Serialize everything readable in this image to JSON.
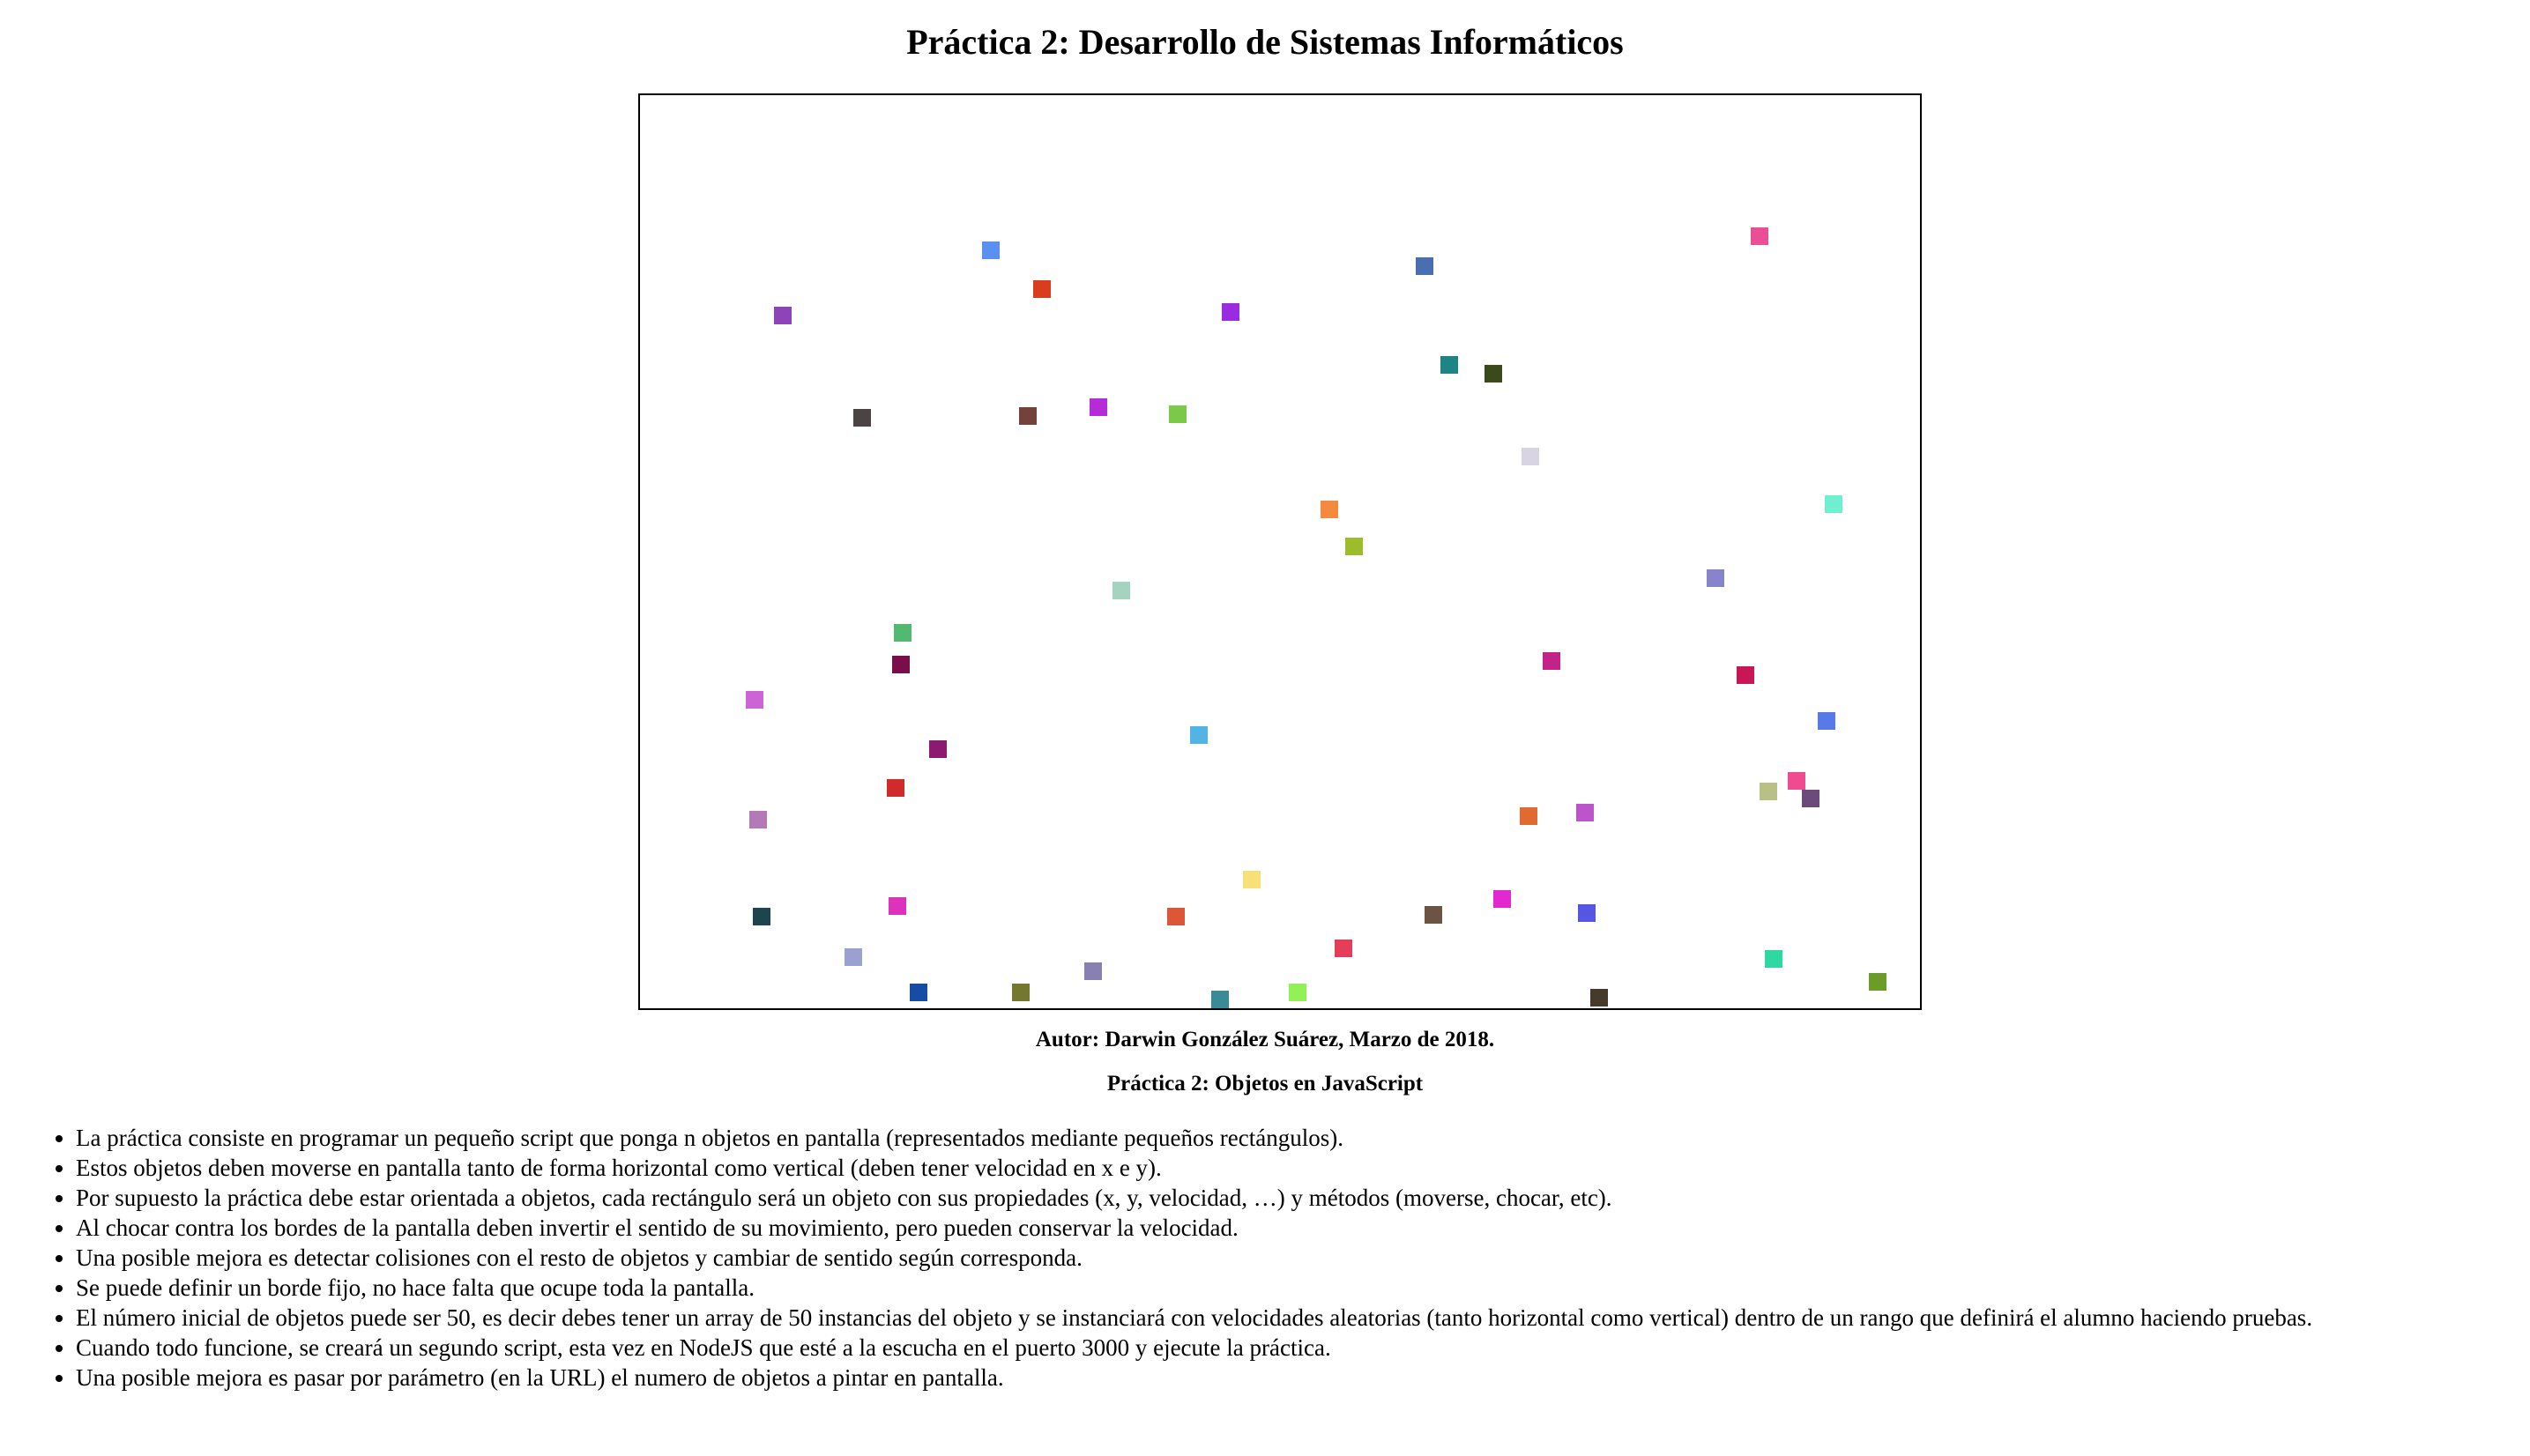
{
  "page": {
    "title": "Práctica 2: Desarrollo de Sistemas Informáticos",
    "author": "Autor: Darwin González Suárez, Marzo de 2018.",
    "subtitle": "Práctica 2: Objetos en JavaScript"
  },
  "requirements": [
    "La práctica consiste en programar un pequeño script que ponga n objetos en pantalla (representados mediante pequeños rectángulos).",
    "Estos objetos deben moverse en pantalla tanto de forma horizontal como vertical (deben tener velocidad en x e y).",
    "Por supuesto la práctica debe estar orientada a objetos, cada rectángulo será un objeto con sus propiedades (x, y, velocidad, …) y métodos (moverse, chocar, etc).",
    "Al chocar contra los bordes de la pantalla deben invertir el sentido de su movimiento, pero pueden conservar la velocidad.",
    "Una posible mejora es detectar colisiones con el resto de objetos y cambiar de sentido según corresponda.",
    "Se puede definir un borde fijo, no hace falta que ocupe toda la pantalla.",
    "El número inicial de objetos puede ser 50, es decir debes tener un array de 50 instancias del objeto y se instanciará con velocidades aleatorias (tanto horizontal como vertical) dentro de un rango que definirá el alumno haciendo pruebas.",
    "Cuando todo funcione, se creará un segundo script, esta vez en NodeJS que esté a la escucha en el puerto 3000 y ejecute la práctica.",
    "Una posible mejora es pasar por parámetro (en la URL) el numero de objetos a pintar en pantalla."
  ],
  "rect_colors": [
    "#5b8ff0",
    "#d93d1e",
    "#8e44b8",
    "#9b2be0",
    "#4a6fb0",
    "#ea4f96",
    "#1e8484",
    "#3a4a1a",
    "#4a4444",
    "#74423a",
    "#b62bd8",
    "#7cc84a",
    "#d8d4e4",
    "#f58a3e",
    "#6ef0d0",
    "#9cbc2c",
    "#a4d4c0",
    "#8884cc",
    "#52b872",
    "#7a0e4a",
    "#c2228a",
    "#c81656",
    "#cc64d8",
    "#52b4e4",
    "#587ae8",
    "#8c1a70",
    "#d02a2a",
    "#f04a90",
    "#b8c088",
    "#6c4a7c",
    "#b47ab8",
    "#e06a30",
    "#bc54cc",
    "#f8e078",
    "#e428d0",
    "#6c5444",
    "#1e4450",
    "#dc32bc",
    "#dc5638",
    "#5656e4",
    "#e43e58",
    "#2ed8a0",
    "#9aa0d0",
    "#8880b0",
    "#6c9c28",
    "#164ca4",
    "#737730",
    "#92f058",
    "#3a8a98",
    "#463a2a"
  ]
}
